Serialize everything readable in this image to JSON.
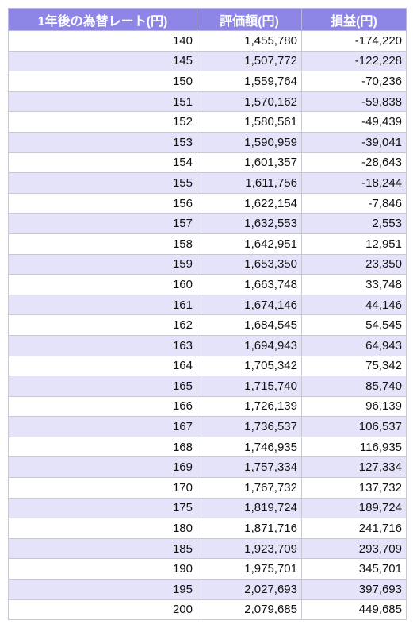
{
  "table": {
    "header": [
      "1年後の為替レート(円)",
      "評価額(円)",
      "損益(円)"
    ],
    "rows": [
      [
        "140",
        "1,455,780",
        "-174,220"
      ],
      [
        "145",
        "1,507,772",
        "-122,228"
      ],
      [
        "150",
        "1,559,764",
        "-70,236"
      ],
      [
        "151",
        "1,570,162",
        "-59,838"
      ],
      [
        "152",
        "1,580,561",
        "-49,439"
      ],
      [
        "153",
        "1,590,959",
        "-39,041"
      ],
      [
        "154",
        "1,601,357",
        "-28,643"
      ],
      [
        "155",
        "1,611,756",
        "-18,244"
      ],
      [
        "156",
        "1,622,154",
        "-7,846"
      ],
      [
        "157",
        "1,632,553",
        "2,553"
      ],
      [
        "158",
        "1,642,951",
        "12,951"
      ],
      [
        "159",
        "1,653,350",
        "23,350"
      ],
      [
        "160",
        "1,663,748",
        "33,748"
      ],
      [
        "161",
        "1,674,146",
        "44,146"
      ],
      [
        "162",
        "1,684,545",
        "54,545"
      ],
      [
        "163",
        "1,694,943",
        "64,943"
      ],
      [
        "164",
        "1,705,342",
        "75,342"
      ],
      [
        "165",
        "1,715,740",
        "85,740"
      ],
      [
        "166",
        "1,726,139",
        "96,139"
      ],
      [
        "167",
        "1,736,537",
        "106,537"
      ],
      [
        "168",
        "1,746,935",
        "116,935"
      ],
      [
        "169",
        "1,757,334",
        "127,334"
      ],
      [
        "170",
        "1,767,732",
        "137,732"
      ],
      [
        "175",
        "1,819,724",
        "189,724"
      ],
      [
        "180",
        "1,871,716",
        "241,716"
      ],
      [
        "185",
        "1,923,709",
        "293,709"
      ],
      [
        "190",
        "1,975,701",
        "345,701"
      ],
      [
        "195",
        "2,027,693",
        "397,693"
      ],
      [
        "200",
        "2,079,685",
        "449,685"
      ]
    ]
  }
}
